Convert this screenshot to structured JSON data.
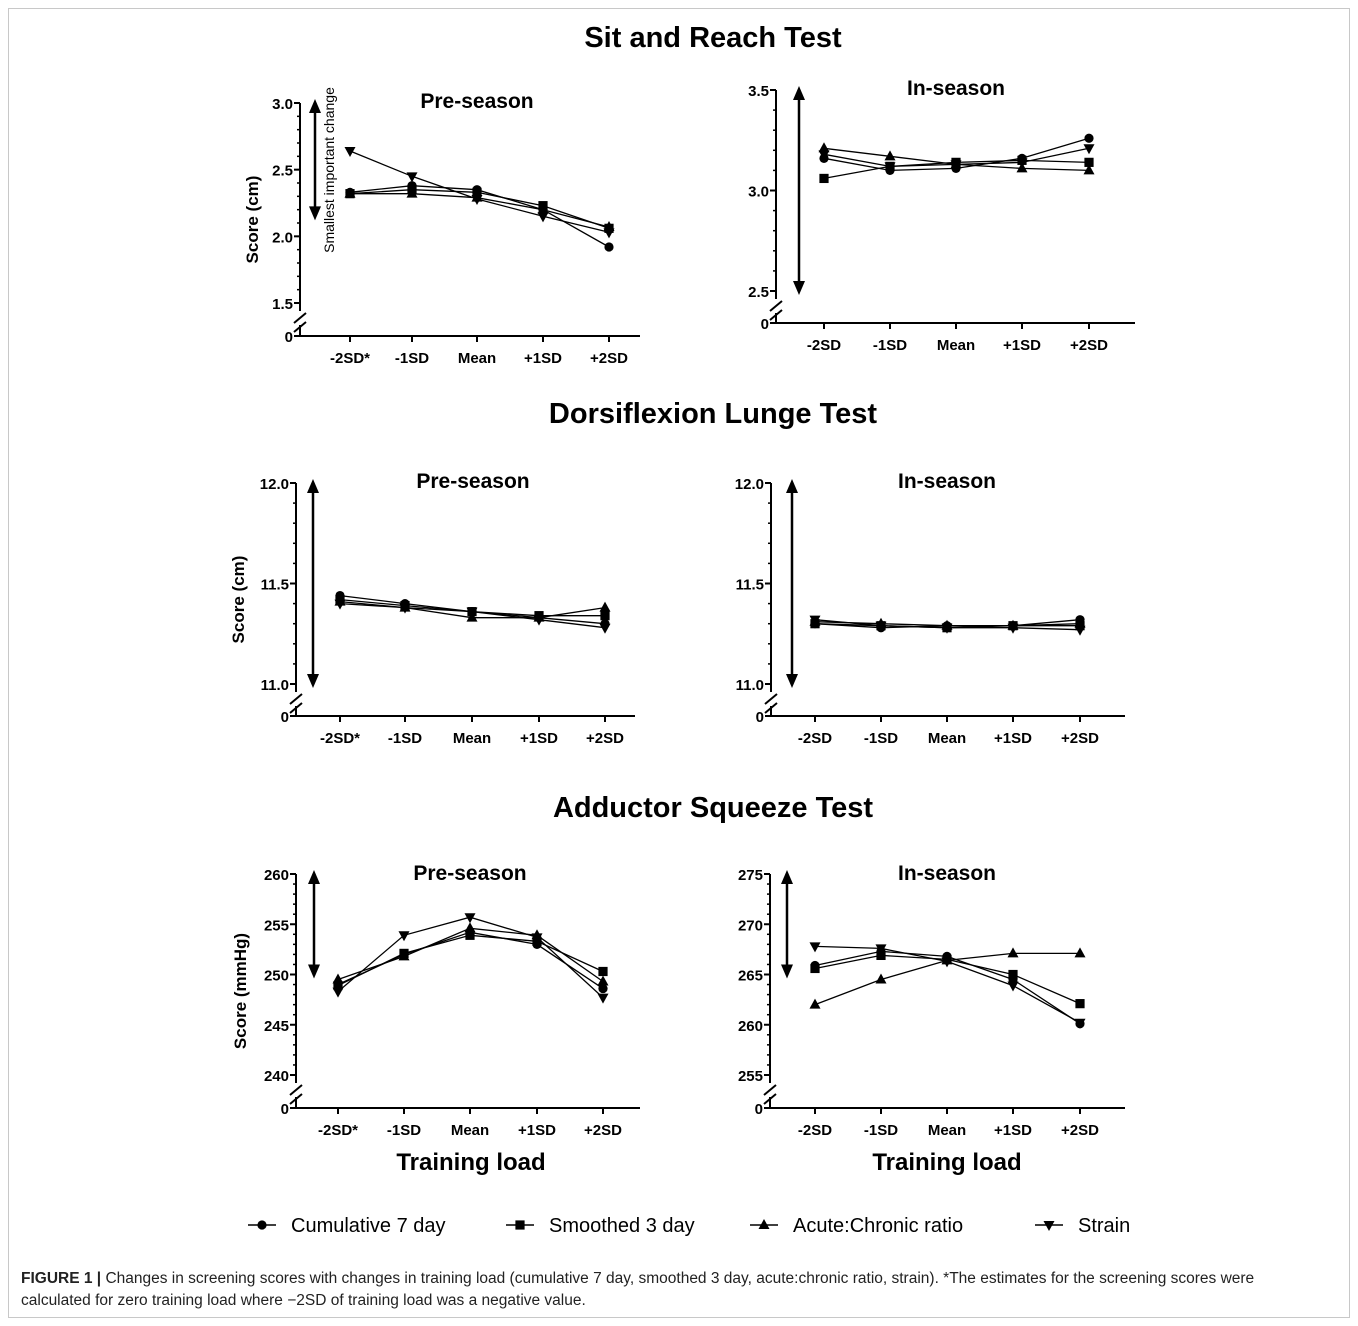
{
  "figure": {
    "section_titles": [
      "Sit and Reach Test",
      "Dorsiflexion Lunge Test",
      "Adductor Squeeze Test"
    ],
    "x_axis_title": "Training load",
    "caption_label": "FIGURE 1 |",
    "caption_text": "Changes in screening scores with changes in training load (cumulative 7 day, smoothed 3 day, acute:chronic ratio, strain). *The estimates for the screening scores were calculated for zero training load where −2SD of training load was a negative value."
  },
  "legend": [
    {
      "name": "Cumulative 7 day",
      "marker": "circle"
    },
    {
      "name": "Smoothed 3 day",
      "marker": "square"
    },
    {
      "name": "Acute:Chronic ratio",
      "marker": "triangle-up"
    },
    {
      "name": "Strain",
      "marker": "triangle-down"
    }
  ],
  "colors": {
    "ink": "#000000",
    "caption_text": "#222222",
    "frame": "#c8c8c8"
  },
  "chart_data": [
    {
      "type": "line",
      "title": "Pre-season",
      "section": "Sit and Reach Test",
      "ylabel": "Score (cm)",
      "ylim": [
        1.5,
        3.0
      ],
      "yticks": [
        "3.0",
        "2.5",
        "2.0",
        "1.5"
      ],
      "y_axis_break_label": "0",
      "categories": [
        "-2SD*",
        "-1SD",
        "Mean",
        "+1SD",
        "+2SD"
      ],
      "annotation": "Smallest important change",
      "sic_arrow_range": [
        2.15,
        3.0
      ],
      "series": [
        {
          "name": "Cumulative 7 day",
          "values": [
            2.33,
            2.38,
            2.35,
            2.2,
            1.92
          ]
        },
        {
          "name": "Smoothed 3 day",
          "values": [
            2.32,
            2.35,
            2.33,
            2.23,
            2.06
          ]
        },
        {
          "name": "Acute:Chronic ratio",
          "values": [
            2.32,
            2.32,
            2.29,
            2.2,
            2.07
          ]
        },
        {
          "name": "Strain",
          "values": [
            2.64,
            2.45,
            2.28,
            2.15,
            2.03
          ]
        }
      ]
    },
    {
      "type": "line",
      "title": "In-season",
      "section": "Sit and Reach Test",
      "ylabel": "",
      "ylim": [
        2.5,
        3.5
      ],
      "yticks": [
        "3.5",
        "3.0",
        "2.5"
      ],
      "y_axis_break_label": "0",
      "categories": [
        "-2SD",
        "-1SD",
        "Mean",
        "+1SD",
        "+2SD"
      ],
      "sic_arrow_range": [
        2.5,
        3.5
      ],
      "series": [
        {
          "name": "Cumulative 7 day",
          "values": [
            3.16,
            3.1,
            3.11,
            3.16,
            3.26
          ]
        },
        {
          "name": "Smoothed 3 day",
          "values": [
            3.06,
            3.12,
            3.14,
            3.15,
            3.14
          ]
        },
        {
          "name": "Acute:Chronic ratio",
          "values": [
            3.21,
            3.17,
            3.13,
            3.11,
            3.1
          ]
        },
        {
          "name": "Strain",
          "values": [
            3.18,
            3.12,
            3.13,
            3.14,
            3.21
          ]
        }
      ]
    },
    {
      "type": "line",
      "title": "Pre-season",
      "section": "Dorsiflexion Lunge Test",
      "ylabel": "Score (cm)",
      "ylim": [
        11.0,
        12.0
      ],
      "yticks": [
        "12.0",
        "11.5",
        "11.0"
      ],
      "y_axis_break_label": "0",
      "categories": [
        "-2SD*",
        "-1SD",
        "Mean",
        "+1SD",
        "+2SD"
      ],
      "sic_arrow_range": [
        11.0,
        12.0
      ],
      "series": [
        {
          "name": "Cumulative 7 day",
          "values": [
            11.44,
            11.4,
            11.36,
            11.33,
            11.3
          ]
        },
        {
          "name": "Smoothed 3 day",
          "values": [
            11.42,
            11.39,
            11.36,
            11.34,
            11.34
          ]
        },
        {
          "name": "Acute:Chronic ratio",
          "values": [
            11.41,
            11.38,
            11.33,
            11.33,
            11.38
          ]
        },
        {
          "name": "Strain",
          "values": [
            11.4,
            11.38,
            11.36,
            11.32,
            11.28
          ]
        }
      ]
    },
    {
      "type": "line",
      "title": "In-season",
      "section": "Dorsiflexion Lunge Test",
      "ylabel": "",
      "ylim": [
        11.0,
        12.0
      ],
      "yticks": [
        "12.0",
        "11.5",
        "11.0"
      ],
      "y_axis_break_label": "0",
      "categories": [
        "-2SD",
        "-1SD",
        "Mean",
        "+1SD",
        "+2SD"
      ],
      "sic_arrow_range": [
        11.0,
        12.0
      ],
      "series": [
        {
          "name": "Cumulative 7 day",
          "values": [
            11.3,
            11.28,
            11.29,
            11.29,
            11.32
          ]
        },
        {
          "name": "Smoothed 3 day",
          "values": [
            11.3,
            11.29,
            11.28,
            11.29,
            11.29
          ]
        },
        {
          "name": "Acute:Chronic ratio",
          "values": [
            11.31,
            11.3,
            11.29,
            11.29,
            11.3
          ]
        },
        {
          "name": "Strain",
          "values": [
            11.32,
            11.29,
            11.28,
            11.28,
            11.27
          ]
        }
      ]
    },
    {
      "type": "line",
      "title": "Pre-season",
      "section": "Adductor Squeeze Test",
      "ylabel": "Score (mmHg)",
      "ylim": [
        240,
        260
      ],
      "yticks": [
        "260",
        "255",
        "250",
        "245",
        "240"
      ],
      "y_axis_break_label": "0",
      "categories": [
        "-2SD*",
        "-1SD",
        "Mean",
        "+1SD",
        "+2SD"
      ],
      "sic_arrow_range": [
        250,
        260
      ],
      "series": [
        {
          "name": "Cumulative 7 day",
          "values": [
            249.0,
            252.0,
            254.2,
            253.0,
            248.6
          ]
        },
        {
          "name": "Smoothed 3 day",
          "values": [
            248.9,
            252.1,
            253.9,
            253.3,
            250.3
          ]
        },
        {
          "name": "Acute:Chronic ratio",
          "values": [
            249.5,
            251.8,
            254.6,
            253.9,
            249.3
          ]
        },
        {
          "name": "Strain",
          "values": [
            248.3,
            253.9,
            255.7,
            253.7,
            247.7
          ]
        }
      ]
    },
    {
      "type": "line",
      "title": "In-season",
      "section": "Adductor Squeeze Test",
      "ylabel": "",
      "ylim": [
        255,
        275
      ],
      "yticks": [
        "275",
        "270",
        "265",
        "260",
        "255"
      ],
      "y_axis_break_label": "0",
      "categories": [
        "-2SD",
        "-1SD",
        "Mean",
        "+1SD",
        "+2SD"
      ],
      "sic_arrow_range": [
        265,
        275
      ],
      "series": [
        {
          "name": "Cumulative 7 day",
          "values": [
            265.9,
            267.3,
            266.8,
            264.5,
            260.1
          ]
        },
        {
          "name": "Smoothed 3 day",
          "values": [
            265.6,
            266.9,
            266.5,
            265.0,
            262.1
          ]
        },
        {
          "name": "Acute:Chronic ratio",
          "values": [
            262.0,
            264.5,
            266.4,
            267.1,
            267.1
          ]
        },
        {
          "name": "Strain",
          "values": [
            267.8,
            267.6,
            266.3,
            263.9,
            260.2
          ]
        }
      ]
    }
  ]
}
